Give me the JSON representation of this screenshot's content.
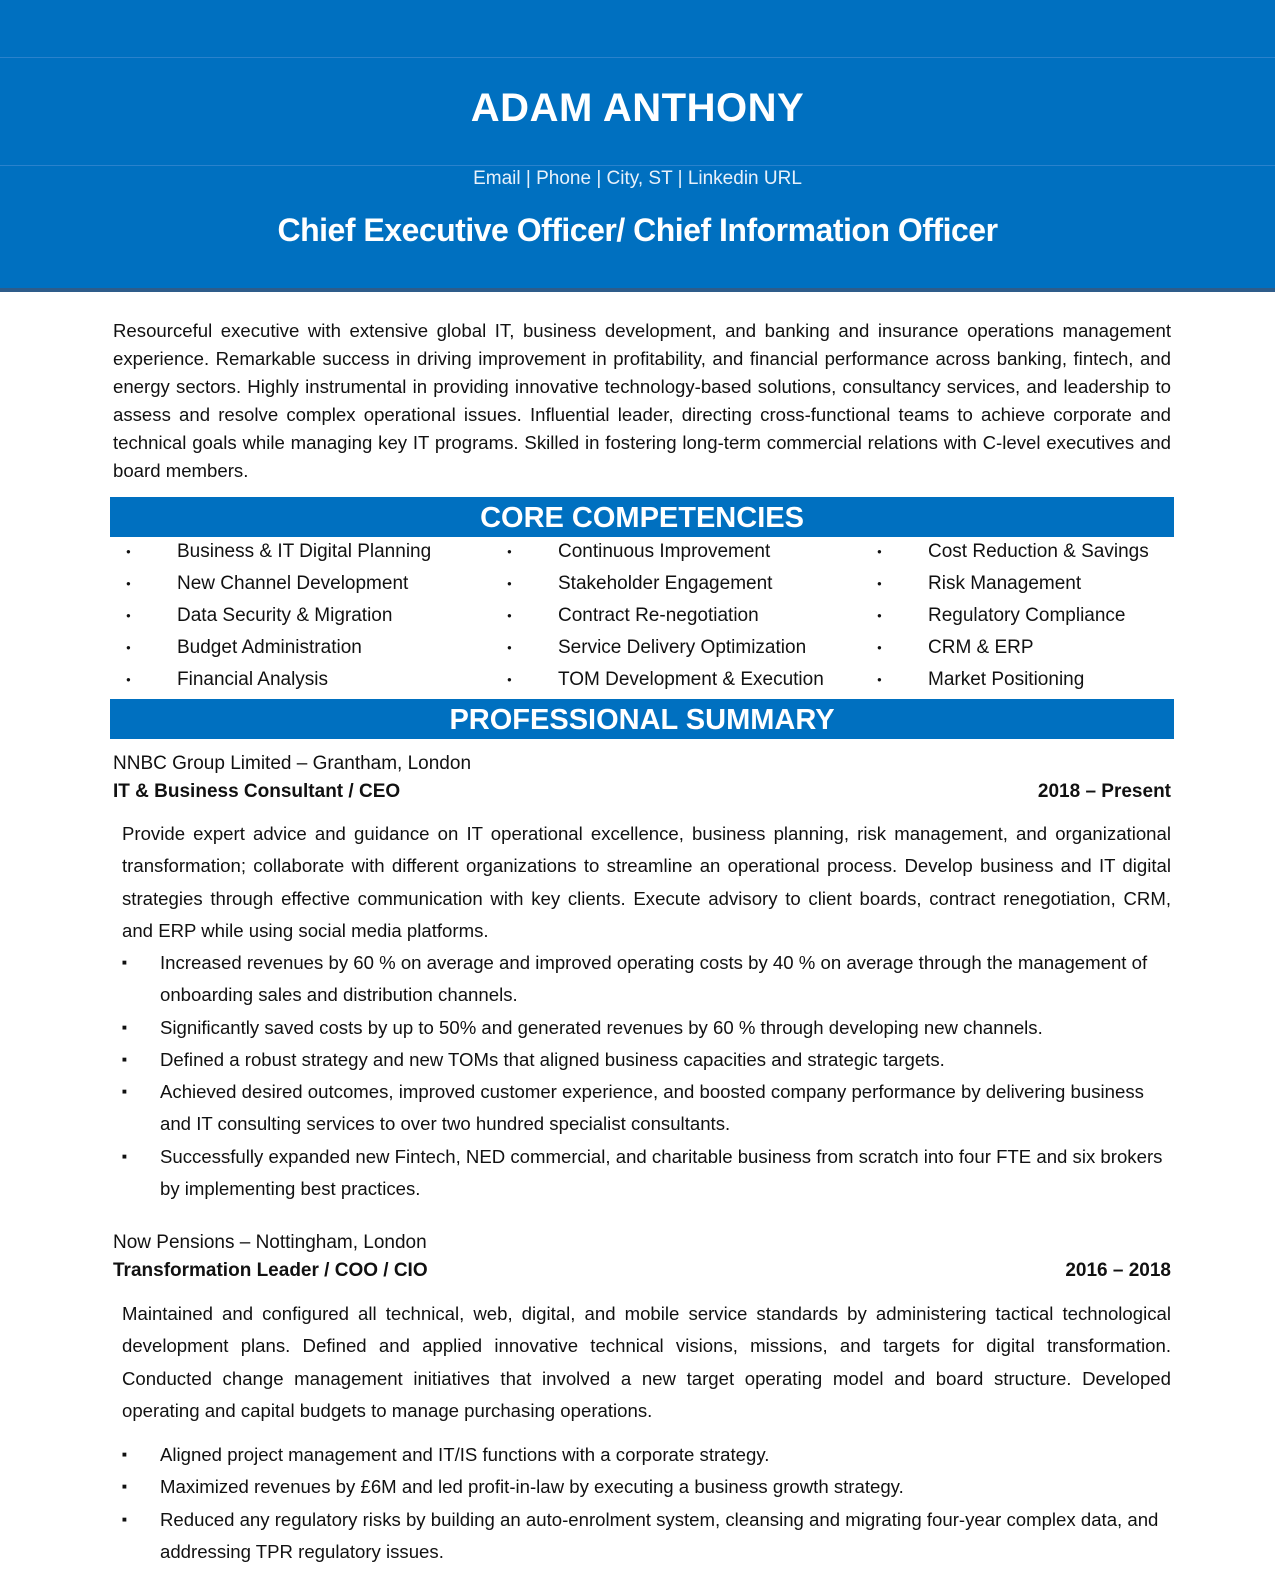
{
  "header": {
    "name": "ADAM ANTHONY",
    "contact": "Email | Phone | City, ST | Linkedin URL",
    "role": "Chief Executive Officer/ Chief Information Officer",
    "color": "#0070C0"
  },
  "intro": "Resourceful executive with extensive global IT, business development, and banking and insurance operations management experience. Remarkable success in driving improvement in profitability, and financial performance across banking, fintech, and energy sectors. Highly instrumental in providing innovative technology-based solutions, consultancy services, and leadership to assess and resolve complex operational issues. Influential leader, directing cross-functional teams to achieve corporate and technical goals while managing key IT programs. Skilled in fostering long-term commercial relations with C-level executives and board members.",
  "competencies": {
    "title": "CORE COMPETENCIES",
    "columns": [
      [
        "Business & IT Digital Planning",
        "New Channel Development",
        "Data Security & Migration",
        " Budget Administration",
        "Financial Analysis"
      ],
      [
        "Continuous Improvement",
        "Stakeholder Engagement",
        "Contract Re-negotiation",
        "Service Delivery Optimization",
        " TOM Development & Execution"
      ],
      [
        "Cost Reduction & Savings",
        "Risk Management",
        "Regulatory Compliance",
        "CRM & ERP",
        "Market Positioning"
      ]
    ]
  },
  "summary": {
    "title": "PROFESSIONAL SUMMARY",
    "jobs": [
      {
        "company": "NNBC Group Limited – Grantham, London",
        "title": "IT & Business Consultant / CEO",
        "dates": "2018 – Present",
        "description": "Provide expert advice and guidance on IT operational excellence, business planning, risk management, and organizational transformation; collaborate with different organizations to streamline an operational process. Develop business and IT digital strategies through effective communication with key clients. Execute advisory to client boards, contract renegotiation, CRM, and ERP while using social media platforms.",
        "bullets": [
          "Increased revenues by 60 % on average and improved operating costs by 40 % on average through the management of onboarding sales and distribution channels.",
          "Significantly saved costs by up to 50% and generated revenues by 60 % through developing new channels.",
          "Defined a robust strategy and new TOMs that aligned business capacities and strategic targets.",
          "Achieved desired outcomes, improved customer experience, and boosted company performance by delivering business and IT consulting services to over two hundred specialist consultants.",
          "Successfully expanded new Fintech, NED commercial, and charitable business from scratch into four FTE and six brokers by implementing best practices."
        ]
      },
      {
        "company": "Now Pensions – Nottingham, London",
        "title": "Transformation Leader / COO / CIO",
        "dates": "2016 – 2018",
        "description": "Maintained and configured all technical, web, digital, and mobile service standards by administering tactical technological development plans. Defined and applied innovative technical visions, missions, and targets for digital transformation. Conducted change management initiatives that involved a new target operating model and board structure. Developed operating and capital budgets to manage purchasing operations.",
        "bullets": [
          "Aligned project management and IT/IS functions with a corporate strategy.",
          "Maximized revenues by £6M and led profit-in-law by executing a business growth strategy.",
          "Reduced any regulatory risks by building an auto-enrolment system, cleansing and migrating four-year complex data, and addressing TPR regulatory issues."
        ]
      }
    ]
  }
}
